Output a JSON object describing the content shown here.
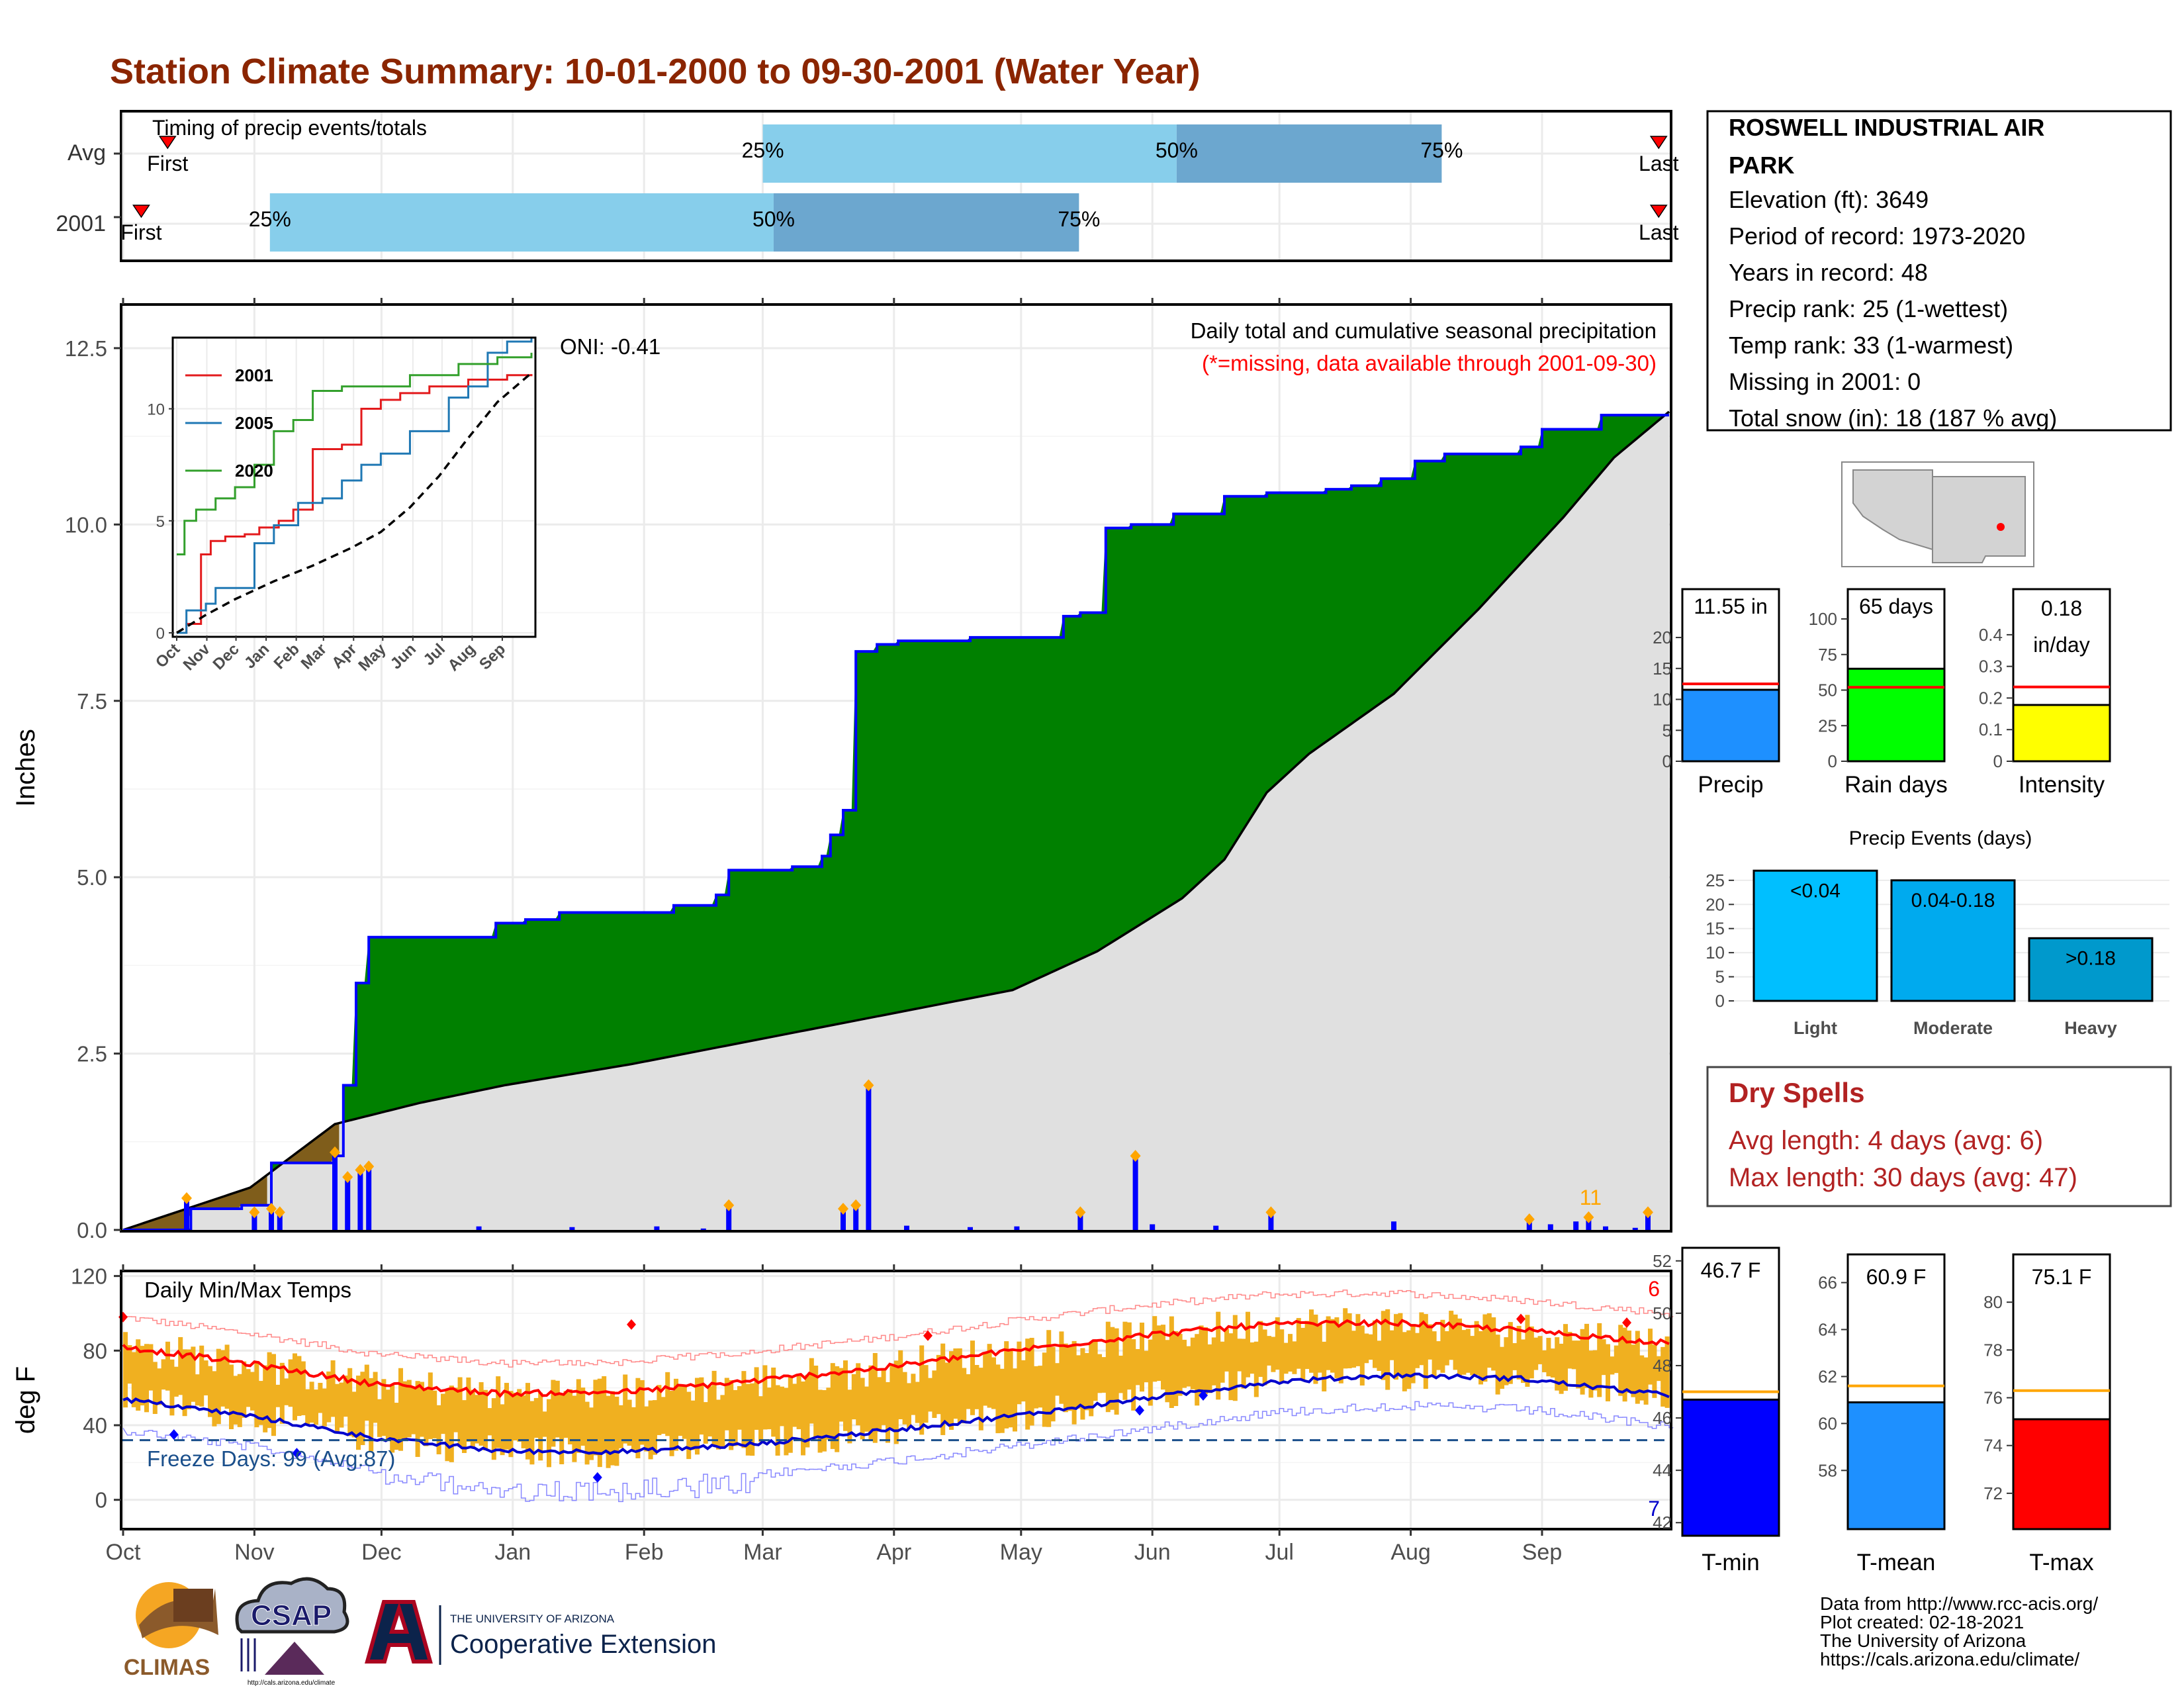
{
  "title": "Station Climate Summary: 10-01-2000 to 09-30-2001 (Water Year)",
  "timing": {
    "label": "Timing of precip events/totals",
    "rows": [
      {
        "label": "Avg",
        "first_label": "First",
        "last_label": "Last",
        "p25": 0.414,
        "p50": 0.681,
        "p75": 0.852,
        "first": 0.03,
        "last": 0.992
      },
      {
        "label": "2001",
        "first_label": "First",
        "last_label": "Last",
        "p25": 0.096,
        "p50": 0.421,
        "p75": 0.618,
        "first": 0.013,
        "last": 0.992
      }
    ],
    "pct_labels": [
      "25%",
      "50%",
      "75%"
    ],
    "colors": {
      "light": "#87ceeb",
      "dark": "#6ca7cf",
      "marker": "#ff0000"
    }
  },
  "station": {
    "name_line1": "ROSWELL INDUSTRIAL AIR",
    "name_line2": "PARK",
    "lines": [
      "Elevation (ft): 3649",
      "Period of record: 1973-2020",
      "Years in record: 48",
      "Precip rank: 25 (1-wettest)",
      "Temp rank: 33 (1-warmest)",
      "Missing in 2001: 0",
      "Total snow (in): 18 (187 % avg)"
    ]
  },
  "map": {
    "fill": "#d3d3d3",
    "dot": "#ff0000"
  },
  "precip_panel": {
    "ylabel": "Inches",
    "oni": "ONI: -0.41",
    "caption": "Daily total and cumulative seasonal precipitation",
    "missing_note": "(*=missing, data available through 2001-09-30)",
    "days_count": "11",
    "colors": {
      "surplus": "#008000",
      "deficit": "#7f5d1b",
      "avg_fill": "#e0e0e0",
      "cum_line": "#0000ff",
      "daily_bar": "#0000ff",
      "marker": "#ffa500"
    }
  },
  "inset": {
    "legend": [
      "2001",
      "2005",
      "2020"
    ],
    "colors": [
      "#e31a1c",
      "#1f78b4",
      "#33a02c"
    ]
  },
  "temp_panel": {
    "ylabel": "deg F",
    "label": "Daily Min/Max Temps",
    "freeze_days": "Freeze Days: 99 (Avg:87)",
    "max_records": "6",
    "min_records": "7",
    "colors": {
      "bars": "#f0b020",
      "max_avg": "#ff0000",
      "min_avg": "#0000cc",
      "freeze": "#1a4f8b"
    }
  },
  "month_labels": [
    "Oct",
    "Nov",
    "Dec",
    "Jan",
    "Feb",
    "Mar",
    "Apr",
    "May",
    "Jun",
    "Jul",
    "Aug",
    "Sep"
  ],
  "gauges": [
    {
      "value_label": "11.55 in",
      "name": "Precip",
      "value": 11.55,
      "avg": 12.5,
      "ymax": 23,
      "ticks": [
        0,
        5,
        10,
        15,
        20
      ],
      "color": "#1e90ff"
    },
    {
      "value_label": "65 days",
      "name": "Rain days",
      "value": 65,
      "avg": 52,
      "ymax": 100,
      "ticks": [
        0,
        25,
        50,
        75,
        100
      ],
      "color": "#00ff00"
    },
    {
      "value_label_1": "0.18",
      "value_label_2": "in/day",
      "name": "Intensity",
      "value": 0.178,
      "avg": 0.235,
      "ymax": 0.45,
      "ticks": [
        0.0,
        0.1,
        0.2,
        0.3,
        0.4
      ],
      "color": "#ffff00"
    }
  ],
  "events": {
    "title": "Precip Events (days)",
    "ticks": [
      0,
      5,
      10,
      15,
      20,
      25
    ],
    "bars": [
      {
        "category": "Light",
        "label": "<0.04",
        "value": 27,
        "color": "#00bfff"
      },
      {
        "category": "Moderate",
        "label": "0.04-0.18",
        "value": 25,
        "color": "#00aaee"
      },
      {
        "category": "Heavy",
        "label": ">0.18",
        "value": 13,
        "color": "#0099cc"
      }
    ]
  },
  "dry_spells": {
    "title": "Dry Spells",
    "avg_length": "Avg length: 4 days (avg: 6)",
    "max_length": "Max length: 30 days (avg: 47)"
  },
  "temp_gauges": [
    {
      "value_label": "46.7 F",
      "name": "T-min",
      "value": 46.7,
      "avg": 47.0,
      "ymin": 41.5,
      "ymax": 52.5,
      "ticks": [
        42,
        44,
        46,
        48,
        50,
        52
      ],
      "color": "#0000ff"
    },
    {
      "value_label": "60.9 F",
      "name": "T-mean",
      "value": 60.9,
      "avg": 61.6,
      "ymin": 55.5,
      "ymax": 67.2,
      "ticks": [
        58,
        60,
        62,
        64,
        66
      ],
      "color": "#1e90ff"
    },
    {
      "value_label": "75.1 F",
      "name": "T-max",
      "value": 75.1,
      "avg": 76.3,
      "ymin": 70.5,
      "ymax": 82.0,
      "ticks": [
        72,
        74,
        76,
        78,
        80
      ],
      "color": "#ff0000"
    }
  ],
  "logos": {
    "climas": "CLIMAS",
    "csap": "CSAP",
    "csap_url": "http://cals.arizona.edu/climate",
    "ua_top": "THE UNIVERSITY OF ARIZONA",
    "ua_bottom": "Cooperative Extension"
  },
  "credits": [
    "Data from http://www.rcc-acis.org/",
    "Plot created: 02-18-2021",
    "The University of Arizona",
    "https://cals.arizona.edu/climate/"
  ],
  "chart_data": [
    {
      "type": "area",
      "title": "Daily total and cumulative seasonal precipitation",
      "ylabel": "Inches",
      "ylim": [
        0,
        13.1
      ],
      "yticks": [
        0.0,
        2.5,
        5.0,
        7.5,
        10.0,
        12.5
      ],
      "x": [
        "Oct",
        "Nov",
        "Dec",
        "Jan",
        "Feb",
        "Mar",
        "Apr",
        "May",
        "Jun",
        "Jul",
        "Aug",
        "Sep"
      ],
      "series": [
        {
          "name": "2001",
          "points": [
            [
              0,
              0
            ],
            [
              16,
              0.3
            ],
            [
              28,
              0.35
            ],
            [
              35,
              0.95
            ],
            [
              50,
              1.05
            ],
            [
              52,
              2.05
            ],
            [
              55,
              3.5
            ],
            [
              58,
              4.15
            ],
            [
              88,
              4.35
            ],
            [
              95,
              4.4
            ],
            [
              103,
              4.5
            ],
            [
              125,
              4.5
            ],
            [
              130,
              4.6
            ],
            [
              140,
              4.75
            ],
            [
              143,
              5.1
            ],
            [
              158,
              5.15
            ],
            [
              165,
              5.3
            ],
            [
              167,
              5.6
            ],
            [
              170,
              5.95
            ],
            [
              173,
              8.2
            ],
            [
              178,
              8.3
            ],
            [
              183,
              8.35
            ],
            [
              200,
              8.4
            ],
            [
              222,
              8.7
            ],
            [
              226,
              8.75
            ],
            [
              232,
              9.95
            ],
            [
              238,
              10.0
            ],
            [
              248,
              10.15
            ],
            [
              260,
              10.4
            ],
            [
              270,
              10.45
            ],
            [
              284,
              10.5
            ],
            [
              290,
              10.55
            ],
            [
              297,
              10.65
            ],
            [
              305,
              10.9
            ],
            [
              312,
              11.0
            ],
            [
              330,
              11.1
            ],
            [
              335,
              11.35
            ],
            [
              349,
              11.55
            ],
            [
              365,
              11.55
            ]
          ]
        },
        {
          "name": "avg",
          "points": [
            [
              0,
              0
            ],
            [
              30,
              0.6
            ],
            [
              50,
              1.5
            ],
            [
              70,
              1.8
            ],
            [
              90,
              2.05
            ],
            [
              120,
              2.35
            ],
            [
              150,
              2.7
            ],
            [
              180,
              3.05
            ],
            [
              210,
              3.4
            ],
            [
              230,
              3.95
            ],
            [
              250,
              4.7
            ],
            [
              260,
              5.25
            ],
            [
              270,
              6.2
            ],
            [
              280,
              6.75
            ],
            [
              300,
              7.6
            ],
            [
              320,
              8.8
            ],
            [
              340,
              10.1
            ],
            [
              352,
              10.95
            ],
            [
              365,
              11.6
            ]
          ]
        }
      ],
      "daily_bars": [
        [
          15,
          0.45
        ],
        [
          31,
          0.25
        ],
        [
          35,
          0.3
        ],
        [
          37,
          0.25
        ],
        [
          50,
          1.1
        ],
        [
          53,
          0.75
        ],
        [
          56,
          0.85
        ],
        [
          58,
          0.9
        ],
        [
          84,
          0.05
        ],
        [
          106,
          0.04
        ],
        [
          126,
          0.05
        ],
        [
          137,
          0.02
        ],
        [
          143,
          0.35
        ],
        [
          170,
          0.3
        ],
        [
          173,
          0.35
        ],
        [
          176,
          2.05
        ],
        [
          185,
          0.06
        ],
        [
          200,
          0.04
        ],
        [
          211,
          0.05
        ],
        [
          226,
          0.25
        ],
        [
          239,
          1.05
        ],
        [
          243,
          0.08
        ],
        [
          258,
          0.06
        ],
        [
          271,
          0.25
        ],
        [
          300,
          0.12
        ],
        [
          332,
          0.15
        ],
        [
          337,
          0.08
        ],
        [
          343,
          0.12
        ],
        [
          346,
          0.18
        ],
        [
          350,
          0.05
        ],
        [
          357,
          0.03
        ],
        [
          360,
          0.25
        ]
      ]
    },
    {
      "type": "line",
      "title": "",
      "yticks": [
        0,
        5,
        10
      ],
      "ylim": [
        0,
        13
      ],
      "x": [
        "Oct",
        "Nov",
        "Dec",
        "Jan",
        "Feb",
        "Mar",
        "Apr",
        "May",
        "Jun",
        "Jul",
        "Aug",
        "Sep"
      ],
      "series": [
        {
          "name": "2001",
          "points": [
            [
              0,
              0
            ],
            [
              10,
              0.4
            ],
            [
              25,
              3.5
            ],
            [
              35,
              4.1
            ],
            [
              50,
              4.3
            ],
            [
              70,
              4.4
            ],
            [
              85,
              4.7
            ],
            [
              105,
              5.0
            ],
            [
              120,
              5.5
            ],
            [
              140,
              8.2
            ],
            [
              170,
              8.4
            ],
            [
              190,
              10.0
            ],
            [
              210,
              10.4
            ],
            [
              230,
              10.7
            ],
            [
              260,
              11.0
            ],
            [
              300,
              11.3
            ],
            [
              340,
              11.5
            ],
            [
              365,
              11.55
            ]
          ]
        },
        {
          "name": "2005",
          "points": [
            [
              0,
              0
            ],
            [
              10,
              1.0
            ],
            [
              30,
              1.3
            ],
            [
              40,
              2.0
            ],
            [
              60,
              2.0
            ],
            [
              80,
              4.0
            ],
            [
              100,
              4.8
            ],
            [
              125,
              5.8
            ],
            [
              150,
              6.0
            ],
            [
              170,
              6.8
            ],
            [
              190,
              7.5
            ],
            [
              210,
              8.0
            ],
            [
              240,
              9.0
            ],
            [
              280,
              10.5
            ],
            [
              300,
              11.0
            ],
            [
              320,
              12.5
            ],
            [
              340,
              13.0
            ],
            [
              365,
              13.2
            ]
          ]
        },
        {
          "name": "2020",
          "points": [
            [
              0,
              3.5
            ],
            [
              8,
              5.0
            ],
            [
              20,
              5.5
            ],
            [
              40,
              6.0
            ],
            [
              60,
              6.5
            ],
            [
              80,
              7.5
            ],
            [
              100,
              9.0
            ],
            [
              120,
              9.5
            ],
            [
              140,
              10.8
            ],
            [
              170,
              11.0
            ],
            [
              200,
              11.0
            ],
            [
              240,
              11.5
            ],
            [
              290,
              12.0
            ],
            [
              330,
              12.3
            ],
            [
              365,
              12.5
            ]
          ]
        },
        {
          "name": "avg",
          "points": [
            [
              0,
              0
            ],
            [
              30,
              0.8
            ],
            [
              60,
              1.5
            ],
            [
              100,
              2.3
            ],
            [
              140,
              3.0
            ],
            [
              180,
              3.8
            ],
            [
              210,
              4.5
            ],
            [
              240,
              5.6
            ],
            [
              270,
              7.0
            ],
            [
              300,
              8.7
            ],
            [
              330,
              10.3
            ],
            [
              365,
              11.6
            ]
          ]
        }
      ]
    },
    {
      "type": "bar",
      "title": "Daily Min/Max Temps",
      "ylabel": "deg F",
      "ylim": [
        -15,
        122
      ],
      "yticks": [
        0,
        40,
        80,
        120
      ],
      "x": [
        "Oct",
        "Nov",
        "Dec",
        "Jan",
        "Feb",
        "Mar",
        "Apr",
        "May",
        "Jun",
        "Jul",
        "Aug",
        "Sep"
      ],
      "freeze_line": 32,
      "max_avg_points": [
        [
          0,
          82
        ],
        [
          30,
          73
        ],
        [
          60,
          62
        ],
        [
          90,
          57
        ],
        [
          120,
          58
        ],
        [
          150,
          64
        ],
        [
          180,
          71
        ],
        [
          210,
          80
        ],
        [
          240,
          88
        ],
        [
          270,
          94
        ],
        [
          300,
          95
        ],
        [
          330,
          91
        ],
        [
          365,
          84
        ]
      ],
      "min_avg_points": [
        [
          0,
          54
        ],
        [
          30,
          45
        ],
        [
          60,
          33
        ],
        [
          90,
          26
        ],
        [
          120,
          26
        ],
        [
          150,
          30
        ],
        [
          180,
          37
        ],
        [
          210,
          45
        ],
        [
          240,
          54
        ],
        [
          270,
          63
        ],
        [
          300,
          67
        ],
        [
          330,
          65
        ],
        [
          365,
          56
        ]
      ]
    },
    {
      "type": "bar",
      "title": "Precip Events (days)",
      "categories": [
        "Light",
        "Moderate",
        "Heavy"
      ],
      "values": [
        27,
        25,
        13
      ]
    },
    {
      "type": "bar",
      "categories": [
        "Precip",
        "Rain days",
        "Intensity"
      ],
      "values": [
        11.55,
        65,
        0.18
      ]
    },
    {
      "type": "bar",
      "categories": [
        "T-min",
        "T-mean",
        "T-max"
      ],
      "values": [
        46.7,
        60.9,
        75.1
      ]
    }
  ]
}
